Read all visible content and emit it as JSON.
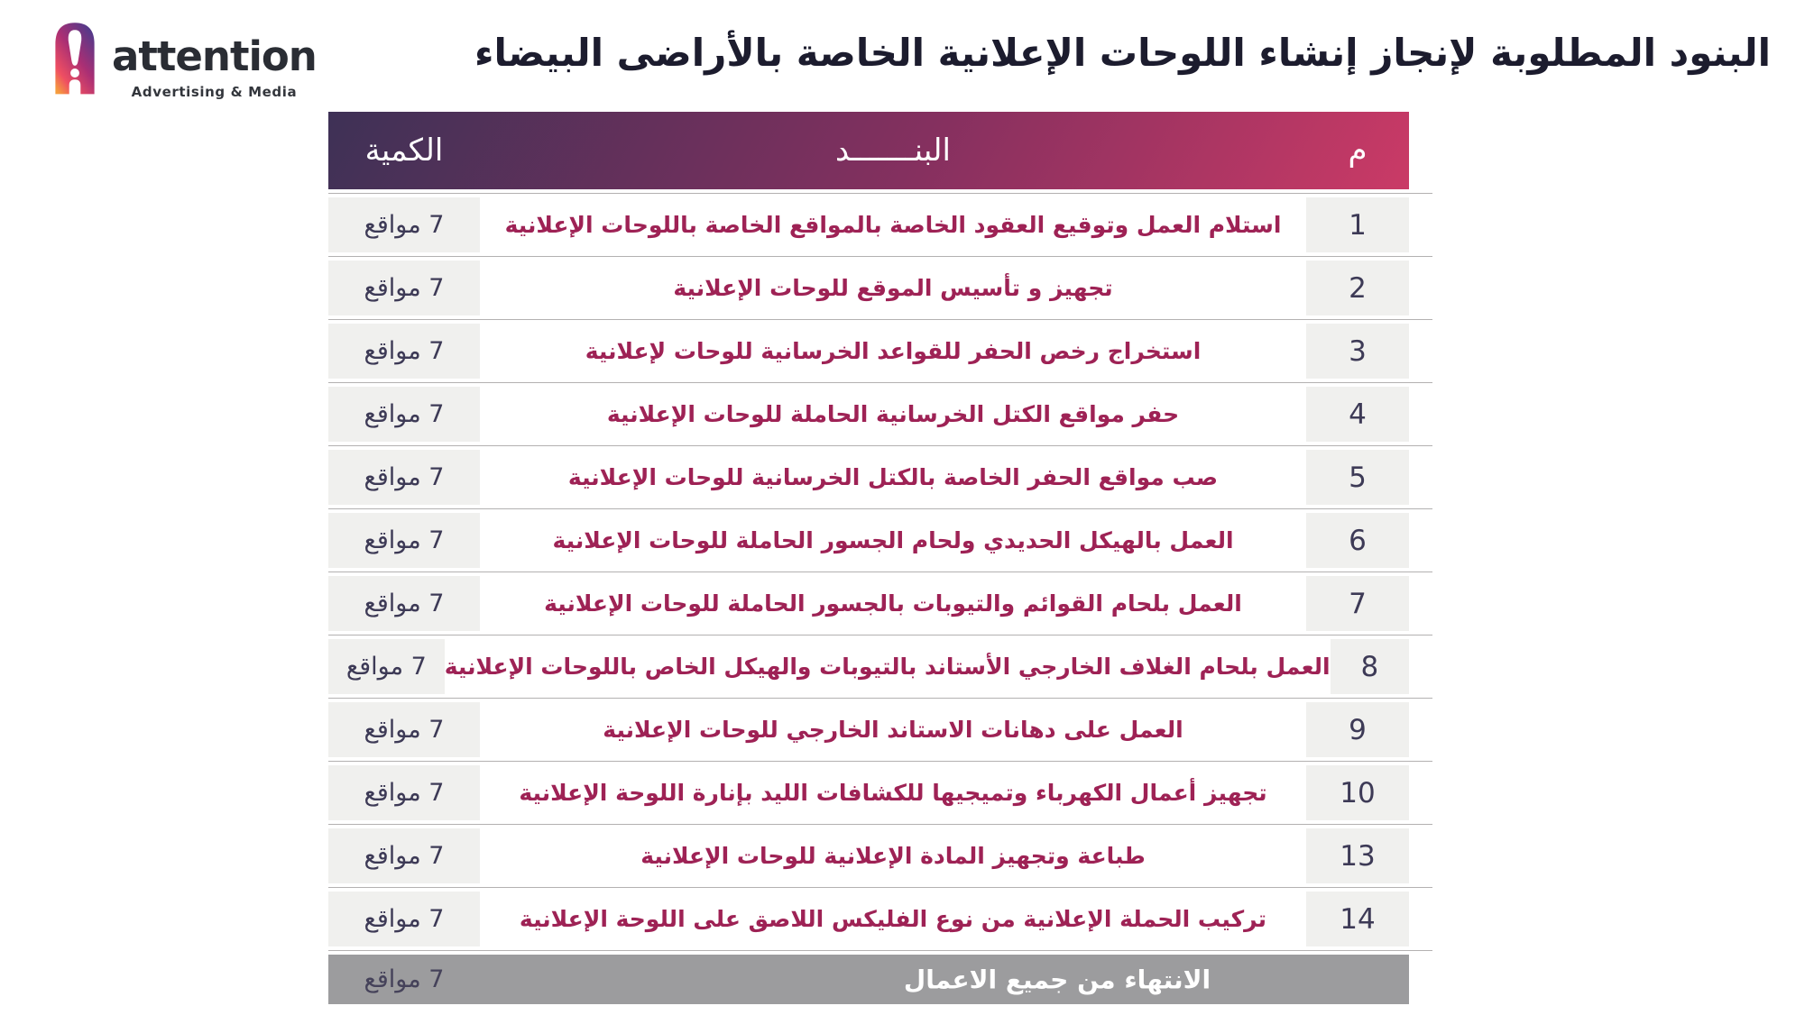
{
  "logo": {
    "brand": "attention",
    "tagline": "Advertising & Media"
  },
  "title": "البنود المطلوبة لإنجاز إنشاء اللوحات الإعلانية الخاصة بالأراضى البيضاء",
  "table": {
    "headers": {
      "index": "م",
      "item": "البنـــــــد",
      "quantity": "الكمية"
    },
    "rows": [
      {
        "index": "1",
        "item": "استلام العمل وتوقيع العقود الخاصة بالمواقع الخاصة باللوحات الإعلانية",
        "quantity": "7 مواقع"
      },
      {
        "index": "2",
        "item": "تجهيز و تأسيس الموقع للوحات الإعلانية",
        "quantity": "7 مواقع"
      },
      {
        "index": "3",
        "item": "استخراج رخص الحفر للقواعد الخرسانية للوحات لإعلانية",
        "quantity": "7 مواقع"
      },
      {
        "index": "4",
        "item": "حفر مواقع الكتل الخرسانية الحاملة للوحات الإعلانية",
        "quantity": "7 مواقع"
      },
      {
        "index": "5",
        "item": "صب مواقع الحفر الخاصة بالكتل الخرسانية للوحات الإعلانية",
        "quantity": "7 مواقع"
      },
      {
        "index": "6",
        "item": "العمل بالهيكل الحديدي ولحام الجسور الحاملة للوحات الإعلانية",
        "quantity": "7 مواقع"
      },
      {
        "index": "7",
        "item": "العمل بلحام القوائم والتيوبات بالجسور الحاملة للوحات الإعلانية",
        "quantity": "7 مواقع"
      },
      {
        "index": "8",
        "item": "العمل بلحام الغلاف الخارجي الأستاند بالتيوبات والهيكل الخاص باللوحات الإعلانية",
        "quantity": "7 مواقع"
      },
      {
        "index": "9",
        "item": "العمل على دهانات الاستاند الخارجي للوحات الإعلانية",
        "quantity": "7 مواقع"
      },
      {
        "index": "10",
        "item": "تجهيز أعمال الكهرباء وتميجيها للكشافات الليد بإنارة اللوحة الإعلانية",
        "quantity": "7 مواقع"
      },
      {
        "index": "13",
        "item": "طباعة وتجهيز المادة الإعلانية للوحات الإعلانية",
        "quantity": "7 مواقع"
      },
      {
        "index": "14",
        "item": "تركيب الحملة الإعلانية من نوع الفليكس اللاصق على اللوحة الإعلانية",
        "quantity": "7 مواقع"
      }
    ],
    "footer": {
      "label": "الانتهاء من جميع الاعمال",
      "quantity": "7 مواقع"
    }
  },
  "colors": {
    "header-grad-1": "#3e3156",
    "header-grad-2": "#85305f",
    "header-grad-3": "#ca3a66",
    "item-text": "#9e2255",
    "num-text": "#3d3a56",
    "cell-bg": "#f0f0ee",
    "divider": "#b3b1b1",
    "footer-bg": "#9c9c9e",
    "footer-qty": "#45425a",
    "title-text": "#1c1c2e",
    "logo-grad-1": "#4b3a8c",
    "logo-grad-2": "#aa2f74",
    "logo-grad-3": "#ef4f62",
    "logo-grad-4": "#f59d3d"
  }
}
